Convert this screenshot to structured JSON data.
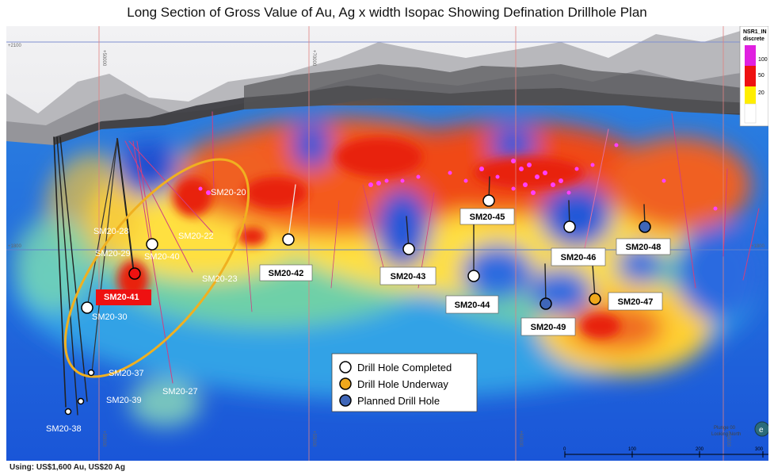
{
  "title": "Long Section of Gross Value of Au, Ag x width Isopac Showing Defination Drillhole Plan",
  "footnote": "Using: US$1,600 Au, US$20 Ag",
  "colorbar": {
    "title": "NSR1_IN",
    "subtitle": "discrete",
    "ticks": [
      "100",
      "50",
      "20"
    ],
    "colors": [
      "#e020e0",
      "#ee1111",
      "#ffee00",
      "#ffffff"
    ]
  },
  "legend": {
    "items": [
      {
        "label": "Drill Hole Completed",
        "color": "#ffffff"
      },
      {
        "label": "Drill Hole Underway",
        "color": "#f0a81c"
      },
      {
        "label": "Planned Drill Hole",
        "color": "#3f66b8"
      }
    ]
  },
  "grid": {
    "elevation_labels": [
      "+2100",
      "+1800",
      "+1800"
    ],
    "easting_labels": [
      "+50000",
      "+50000",
      "+55000",
      "+60000",
      "+65000",
      "+70000"
    ]
  },
  "view": {
    "plunge": "Plunge 00",
    "looking": "Looking North"
  },
  "scalebar": {
    "labels": [
      "0",
      "100",
      "200",
      "300"
    ]
  },
  "holes_plain": [
    {
      "id": "SM20-20",
      "color": "#ffffff"
    },
    {
      "id": "SM20-22",
      "color": "#ffffff"
    },
    {
      "id": "SM20-23",
      "color": "#ffffff"
    },
    {
      "id": "SM20-27",
      "color": "#ffffff"
    },
    {
      "id": "SM20-28",
      "color": "#ffffff"
    },
    {
      "id": "SM20-29",
      "color": "#ffffff"
    },
    {
      "id": "SM20-30",
      "color": "#ffffff"
    },
    {
      "id": "SM20-37",
      "color": "#ffffff"
    },
    {
      "id": "SM20-38",
      "color": "#ffffff"
    },
    {
      "id": "SM20-39",
      "color": "#ffffff"
    },
    {
      "id": "SM20-40",
      "color": "#ffffff"
    },
    {
      "id": "SM20-41",
      "color": "#ee1111"
    }
  ],
  "holes_boxed": [
    {
      "id": "SM20-42",
      "color": "#ffffff"
    },
    {
      "id": "SM20-43",
      "color": "#ffffff"
    },
    {
      "id": "SM20-44",
      "color": "#ffffff"
    },
    {
      "id": "SM20-45",
      "color": "#ffffff"
    },
    {
      "id": "SM20-46",
      "color": "#ffffff"
    },
    {
      "id": "SM20-47",
      "color": "#f0a81c"
    },
    {
      "id": "SM20-48",
      "color": "#3f66b8"
    },
    {
      "id": "SM20-49",
      "color": "#3f66b8"
    }
  ]
}
